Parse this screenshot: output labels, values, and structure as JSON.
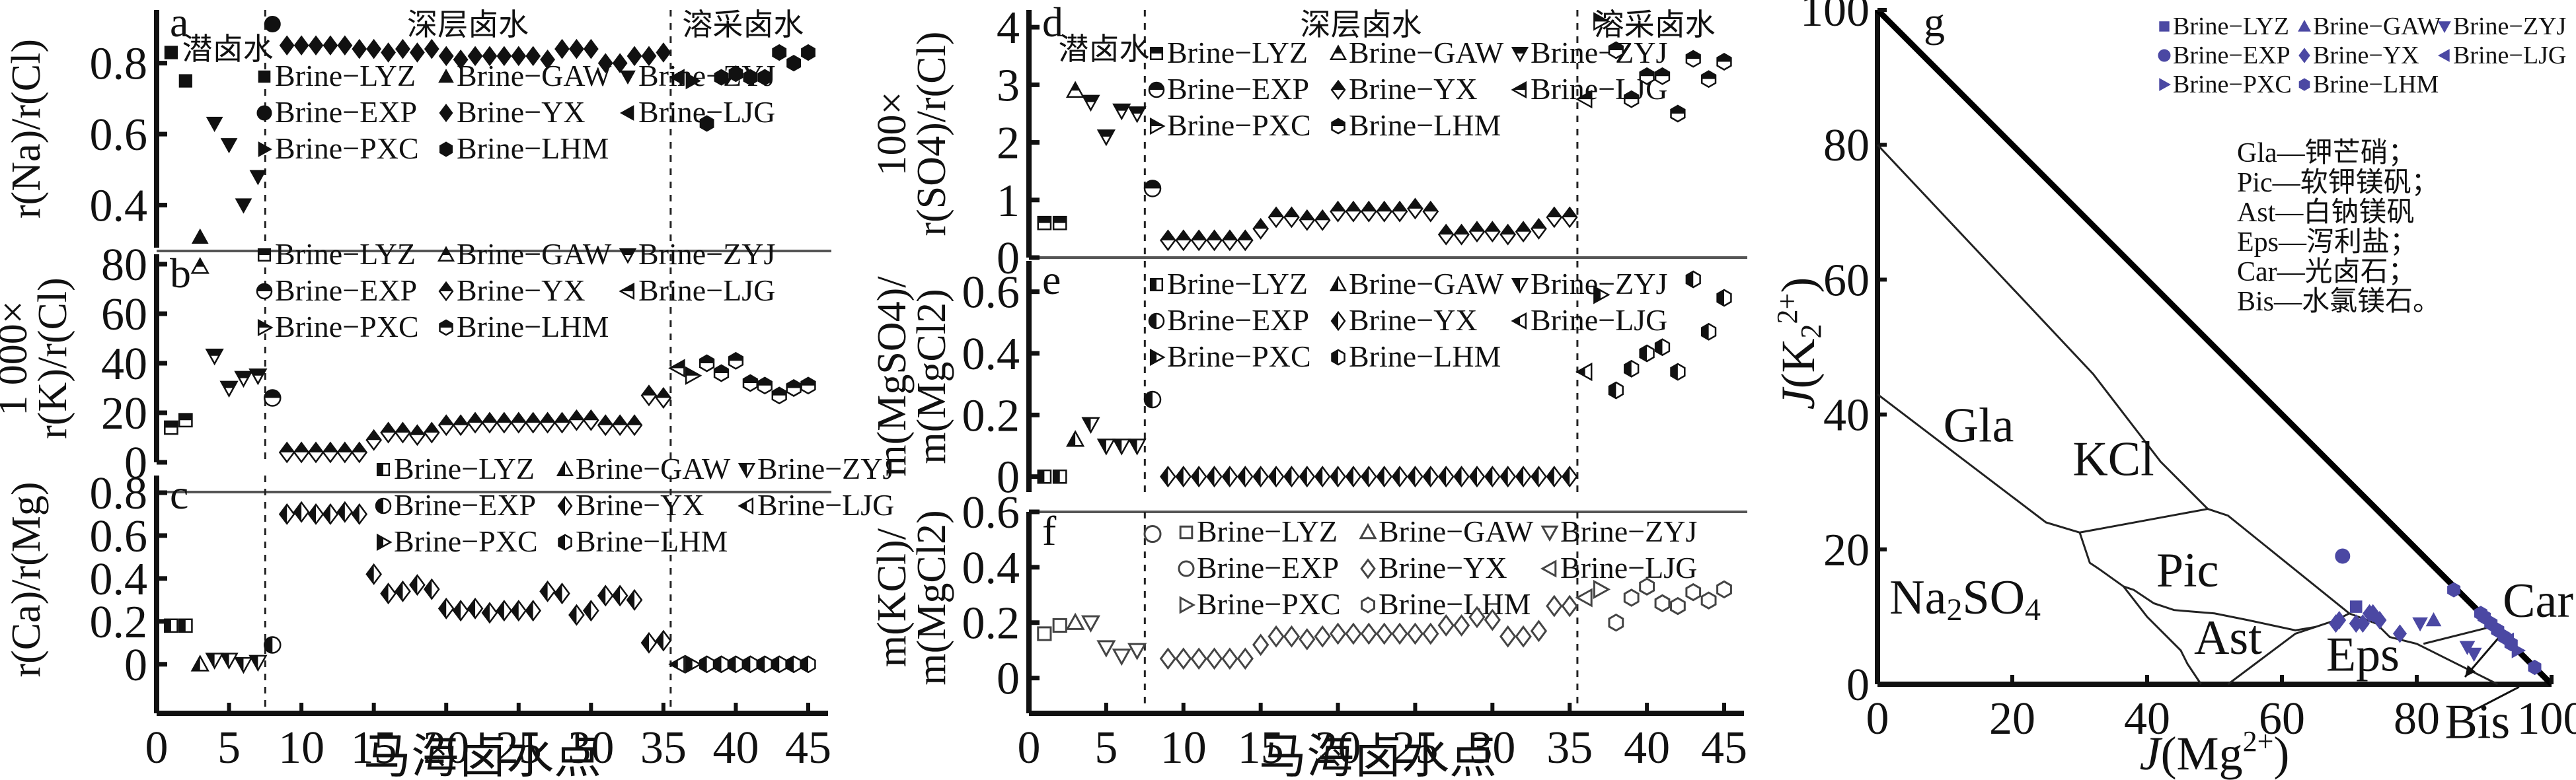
{
  "figure": {
    "x_axis_label": "马海卤水点",
    "x_ticks": [
      "0",
      "5",
      "10",
      "15",
      "20",
      "25",
      "30",
      "35",
      "40",
      "45"
    ],
    "x_range": [
      0,
      45.5
    ],
    "zone_breaks": [
      7.5,
      35.5
    ],
    "zones": [
      "潜卤水",
      "深层卤水",
      "溶采卤水"
    ],
    "legend": [
      "Brine−LYZ",
      "Brine−GAW",
      "Brine−ZYJ",
      "Brine−EXP",
      "Brine−YX",
      "Brine−LJG",
      "Brine−PXC",
      "Brine−LHM"
    ],
    "series_ranges": {
      "Brine-LYZ": [
        1,
        2
      ],
      "Brine-GAW": [
        3,
        3
      ],
      "Brine-ZYJ": [
        4,
        7
      ],
      "Brine-EXP": [
        8,
        8
      ],
      "Brine-YX": [
        9,
        35
      ],
      "Brine-LJG": [
        36,
        36
      ],
      "Brine-PXC": [
        37,
        37
      ],
      "Brine-LHM": [
        38,
        45
      ]
    }
  },
  "chart_data": [
    {
      "id": "a",
      "type": "scatter",
      "panel_label": "a",
      "ylabel": "r(Na)/r(Cl)",
      "ylim": [
        0.28,
        0.95
      ],
      "y_ticks": [
        "0.4",
        "0.6",
        "0.8"
      ],
      "y_tick_values": [
        0.4,
        0.6,
        0.8
      ],
      "x": [
        1,
        2,
        3,
        4,
        5,
        6,
        7,
        8,
        9,
        10,
        11,
        12,
        13,
        14,
        15,
        16,
        17,
        18,
        19,
        20,
        21,
        22,
        23,
        24,
        25,
        26,
        27,
        28,
        29,
        30,
        31,
        32,
        33,
        34,
        35,
        36,
        37,
        38,
        39,
        40,
        41,
        42,
        43,
        44,
        45
      ],
      "values": [
        0.83,
        0.75,
        0.31,
        0.63,
        0.57,
        0.4,
        0.48,
        0.91,
        0.85,
        0.85,
        0.85,
        0.85,
        0.85,
        0.84,
        0.84,
        0.83,
        0.84,
        0.83,
        0.84,
        0.82,
        0.81,
        0.82,
        0.82,
        0.82,
        0.82,
        0.82,
        0.81,
        0.84,
        0.84,
        0.84,
        0.8,
        0.8,
        0.82,
        0.82,
        0.83,
        0.76,
        0.75,
        0.63,
        0.76,
        0.77,
        0.76,
        0.76,
        0.83,
        0.8,
        0.83
      ]
    },
    {
      "id": "b",
      "type": "scatter",
      "panel_label": "b",
      "ylabel_lines": [
        "1 000×",
        "r(K)/r(Cl)"
      ],
      "ylim": [
        0,
        84
      ],
      "y_ticks": [
        "0",
        "20",
        "40",
        "60",
        "80"
      ],
      "y_tick_values": [
        0,
        20,
        40,
        60,
        80
      ],
      "values": [
        14,
        17,
        79,
        43,
        30,
        34,
        35,
        26,
        4,
        4,
        4,
        4,
        4,
        4,
        9,
        12,
        12,
        11,
        12,
        15,
        15,
        16,
        16,
        16,
        16,
        16,
        16,
        16,
        17,
        17,
        15,
        15,
        15,
        27,
        26,
        38,
        35,
        40,
        36,
        41,
        32,
        31,
        27,
        30,
        31
      ]
    },
    {
      "id": "c",
      "type": "scatter",
      "panel_label": "c",
      "ylabel": "r(Ca)/r(Mg)",
      "ylim": [
        -0.09,
        0.88
      ],
      "y_ticks": [
        "0",
        "0.2",
        "0.4",
        "0.6",
        "0.8"
      ],
      "y_tick_values": [
        0,
        0.2,
        0.4,
        0.6,
        0.8
      ],
      "values": [
        0.18,
        0.18,
        0.0,
        0.02,
        0.02,
        0.0,
        0.01,
        0.09,
        0.7,
        0.71,
        0.7,
        0.7,
        0.71,
        0.7,
        0.42,
        0.33,
        0.34,
        0.37,
        0.35,
        0.26,
        0.25,
        0.26,
        0.24,
        0.25,
        0.25,
        0.25,
        0.34,
        0.33,
        0.23,
        0.25,
        0.32,
        0.32,
        0.3,
        0.1,
        0.11,
        0.0,
        0.0,
        0.0,
        0.0,
        0.0,
        0.0,
        0.0,
        0.0,
        0.0,
        0.0
      ]
    },
    {
      "id": "d",
      "type": "scatter",
      "panel_label": "d",
      "ylabel_lines": [
        "100×",
        "r(SO4)/r(Cl)"
      ],
      "ylim": [
        0,
        4.3
      ],
      "y_ticks": [
        "0",
        "1",
        "2",
        "3",
        "4"
      ],
      "y_tick_values": [
        0,
        1,
        2,
        3,
        4
      ],
      "values": [
        0.6,
        0.6,
        2.9,
        2.7,
        2.1,
        2.55,
        2.5,
        1.2,
        0.3,
        0.3,
        0.3,
        0.3,
        0.3,
        0.3,
        0.5,
        0.7,
        0.7,
        0.65,
        0.65,
        0.8,
        0.8,
        0.8,
        0.8,
        0.8,
        0.85,
        0.8,
        0.4,
        0.4,
        0.45,
        0.45,
        0.4,
        0.45,
        0.5,
        0.7,
        0.7,
        2.75,
        4.1,
        3.6,
        2.75,
        3.15,
        3.15,
        2.5,
        3.45,
        3.1,
        3.4
      ]
    },
    {
      "id": "e",
      "type": "scatter",
      "panel_label": "e",
      "ylabel_lines": [
        "m(MgSO4)/",
        "m(MgCl2)"
      ],
      "ylim": [
        -0.05,
        0.7
      ],
      "y_ticks": [
        "0",
        "0.2",
        "0.4",
        "0.6"
      ],
      "y_tick_values": [
        0,
        0.2,
        0.4,
        0.6
      ],
      "values": [
        0,
        0,
        0.12,
        0.17,
        0.1,
        0.1,
        0.1,
        0.25,
        0,
        0,
        0,
        0,
        0,
        0,
        0,
        0,
        0,
        0,
        0,
        0,
        0,
        0,
        0,
        0,
        0,
        0,
        0,
        0,
        0,
        0,
        0,
        0,
        0,
        0,
        0,
        0.34,
        0.59,
        0.28,
        0.35,
        0.4,
        0.42,
        0.34,
        0.64,
        0.47,
        0.58
      ]
    },
    {
      "id": "f",
      "type": "scatter",
      "panel_label": "f",
      "ylabel_lines": [
        "m(KCl)/",
        "m(MgCl2)"
      ],
      "ylim": [
        -0.02,
        0.6
      ],
      "y_ticks": [
        "0",
        "0.2",
        "0.4",
        "0.6"
      ],
      "y_tick_values": [
        0,
        0.2,
        0.4,
        0.6
      ],
      "values": [
        0.16,
        0.19,
        0.2,
        0.2,
        0.11,
        0.08,
        0.1,
        0.52,
        0.07,
        0.07,
        0.07,
        0.07,
        0.07,
        0.07,
        0.12,
        0.15,
        0.15,
        0.14,
        0.15,
        0.16,
        0.16,
        0.16,
        0.16,
        0.16,
        0.16,
        0.16,
        0.19,
        0.19,
        0.22,
        0.21,
        0.15,
        0.15,
        0.17,
        0.26,
        0.26,
        0.29,
        0.32,
        0.2,
        0.29,
        0.33,
        0.27,
        0.26,
        0.31,
        0.28,
        0.32
      ]
    },
    {
      "id": "g",
      "type": "scatter",
      "panel_label": "g",
      "subtype": "ternary-phase-diagram",
      "xlabel": "J(Mg2+)",
      "ylabel": "J(K2 2+)",
      "xlim": [
        0,
        100
      ],
      "ylim": [
        0,
        100
      ],
      "x_ticks": [
        "0",
        "20",
        "40",
        "60",
        "80",
        "100"
      ],
      "y_ticks": [
        "0",
        "20",
        "40",
        "60",
        "80",
        "100"
      ],
      "marker_color": "#4b48a3",
      "phase_fields": [
        "Gla",
        "KCl",
        "Pic",
        "Na2SO4",
        "Ast",
        "Eps",
        "Car",
        "Bis"
      ],
      "phase_abbreviations": [
        "Gla—钾芒硝；",
        "Pic—软钾镁矾；",
        "Ast—白钠镁矾",
        "Eps—泻利盐；",
        "Car—光卤石；",
        "Bis—水氯镁石。"
      ],
      "points": [
        {
          "series": "Brine-EXP",
          "x": 69,
          "y": 19
        },
        {
          "series": "Brine-YX",
          "x": 68,
          "y": 9
        },
        {
          "series": "Brine-YX",
          "x": 68.5,
          "y": 9.5
        },
        {
          "series": "Brine-YX",
          "x": 71,
          "y": 9
        },
        {
          "series": "Brine-YX",
          "x": 72,
          "y": 9
        },
        {
          "series": "Brine-YX",
          "x": 73,
          "y": 10.5
        },
        {
          "series": "Brine-YX",
          "x": 73.5,
          "y": 10.5
        },
        {
          "series": "Brine-LYZ",
          "x": 71,
          "y": 11.5
        },
        {
          "series": "Brine-YX",
          "x": 74.5,
          "y": 9.5
        },
        {
          "series": "Brine-YX",
          "x": 77.5,
          "y": 7.5
        },
        {
          "series": "Brine-ZYJ",
          "x": 80.5,
          "y": 9
        },
        {
          "series": "Brine-GAW",
          "x": 82.5,
          "y": 9.5
        },
        {
          "series": "Brine-ZYJ",
          "x": 87.5,
          "y": 5.5
        },
        {
          "series": "Brine-ZYJ",
          "x": 88.5,
          "y": 4.5
        },
        {
          "series": "Brine-LHM",
          "x": 85.5,
          "y": 14
        },
        {
          "series": "Brine-LHM",
          "x": 89.5,
          "y": 10.5
        },
        {
          "series": "Brine-LHM",
          "x": 90,
          "y": 10
        },
        {
          "series": "Brine-LHM",
          "x": 91,
          "y": 9
        },
        {
          "series": "Brine-LHM",
          "x": 92,
          "y": 8
        },
        {
          "series": "Brine-LHM",
          "x": 93,
          "y": 7
        },
        {
          "series": "Brine-LHM",
          "x": 94,
          "y": 6
        },
        {
          "series": "Brine-LJG",
          "x": 93.5,
          "y": 6.5
        },
        {
          "series": "Brine-PXC",
          "x": 95,
          "y": 5
        },
        {
          "series": "Brine-LHM",
          "x": 97.5,
          "y": 2.5
        }
      ]
    }
  ],
  "panel_g_text": {
    "phases": {
      "Gla": "Gla",
      "KCl": "KCl",
      "Pic": "Pic",
      "Na2SO4": "Na",
      "Ast": "Ast",
      "Eps": "Eps",
      "Car": "Car",
      "Bis": "Bis"
    },
    "xlabel_main": "J(Mg",
    "ylabel_main": "J(K"
  }
}
